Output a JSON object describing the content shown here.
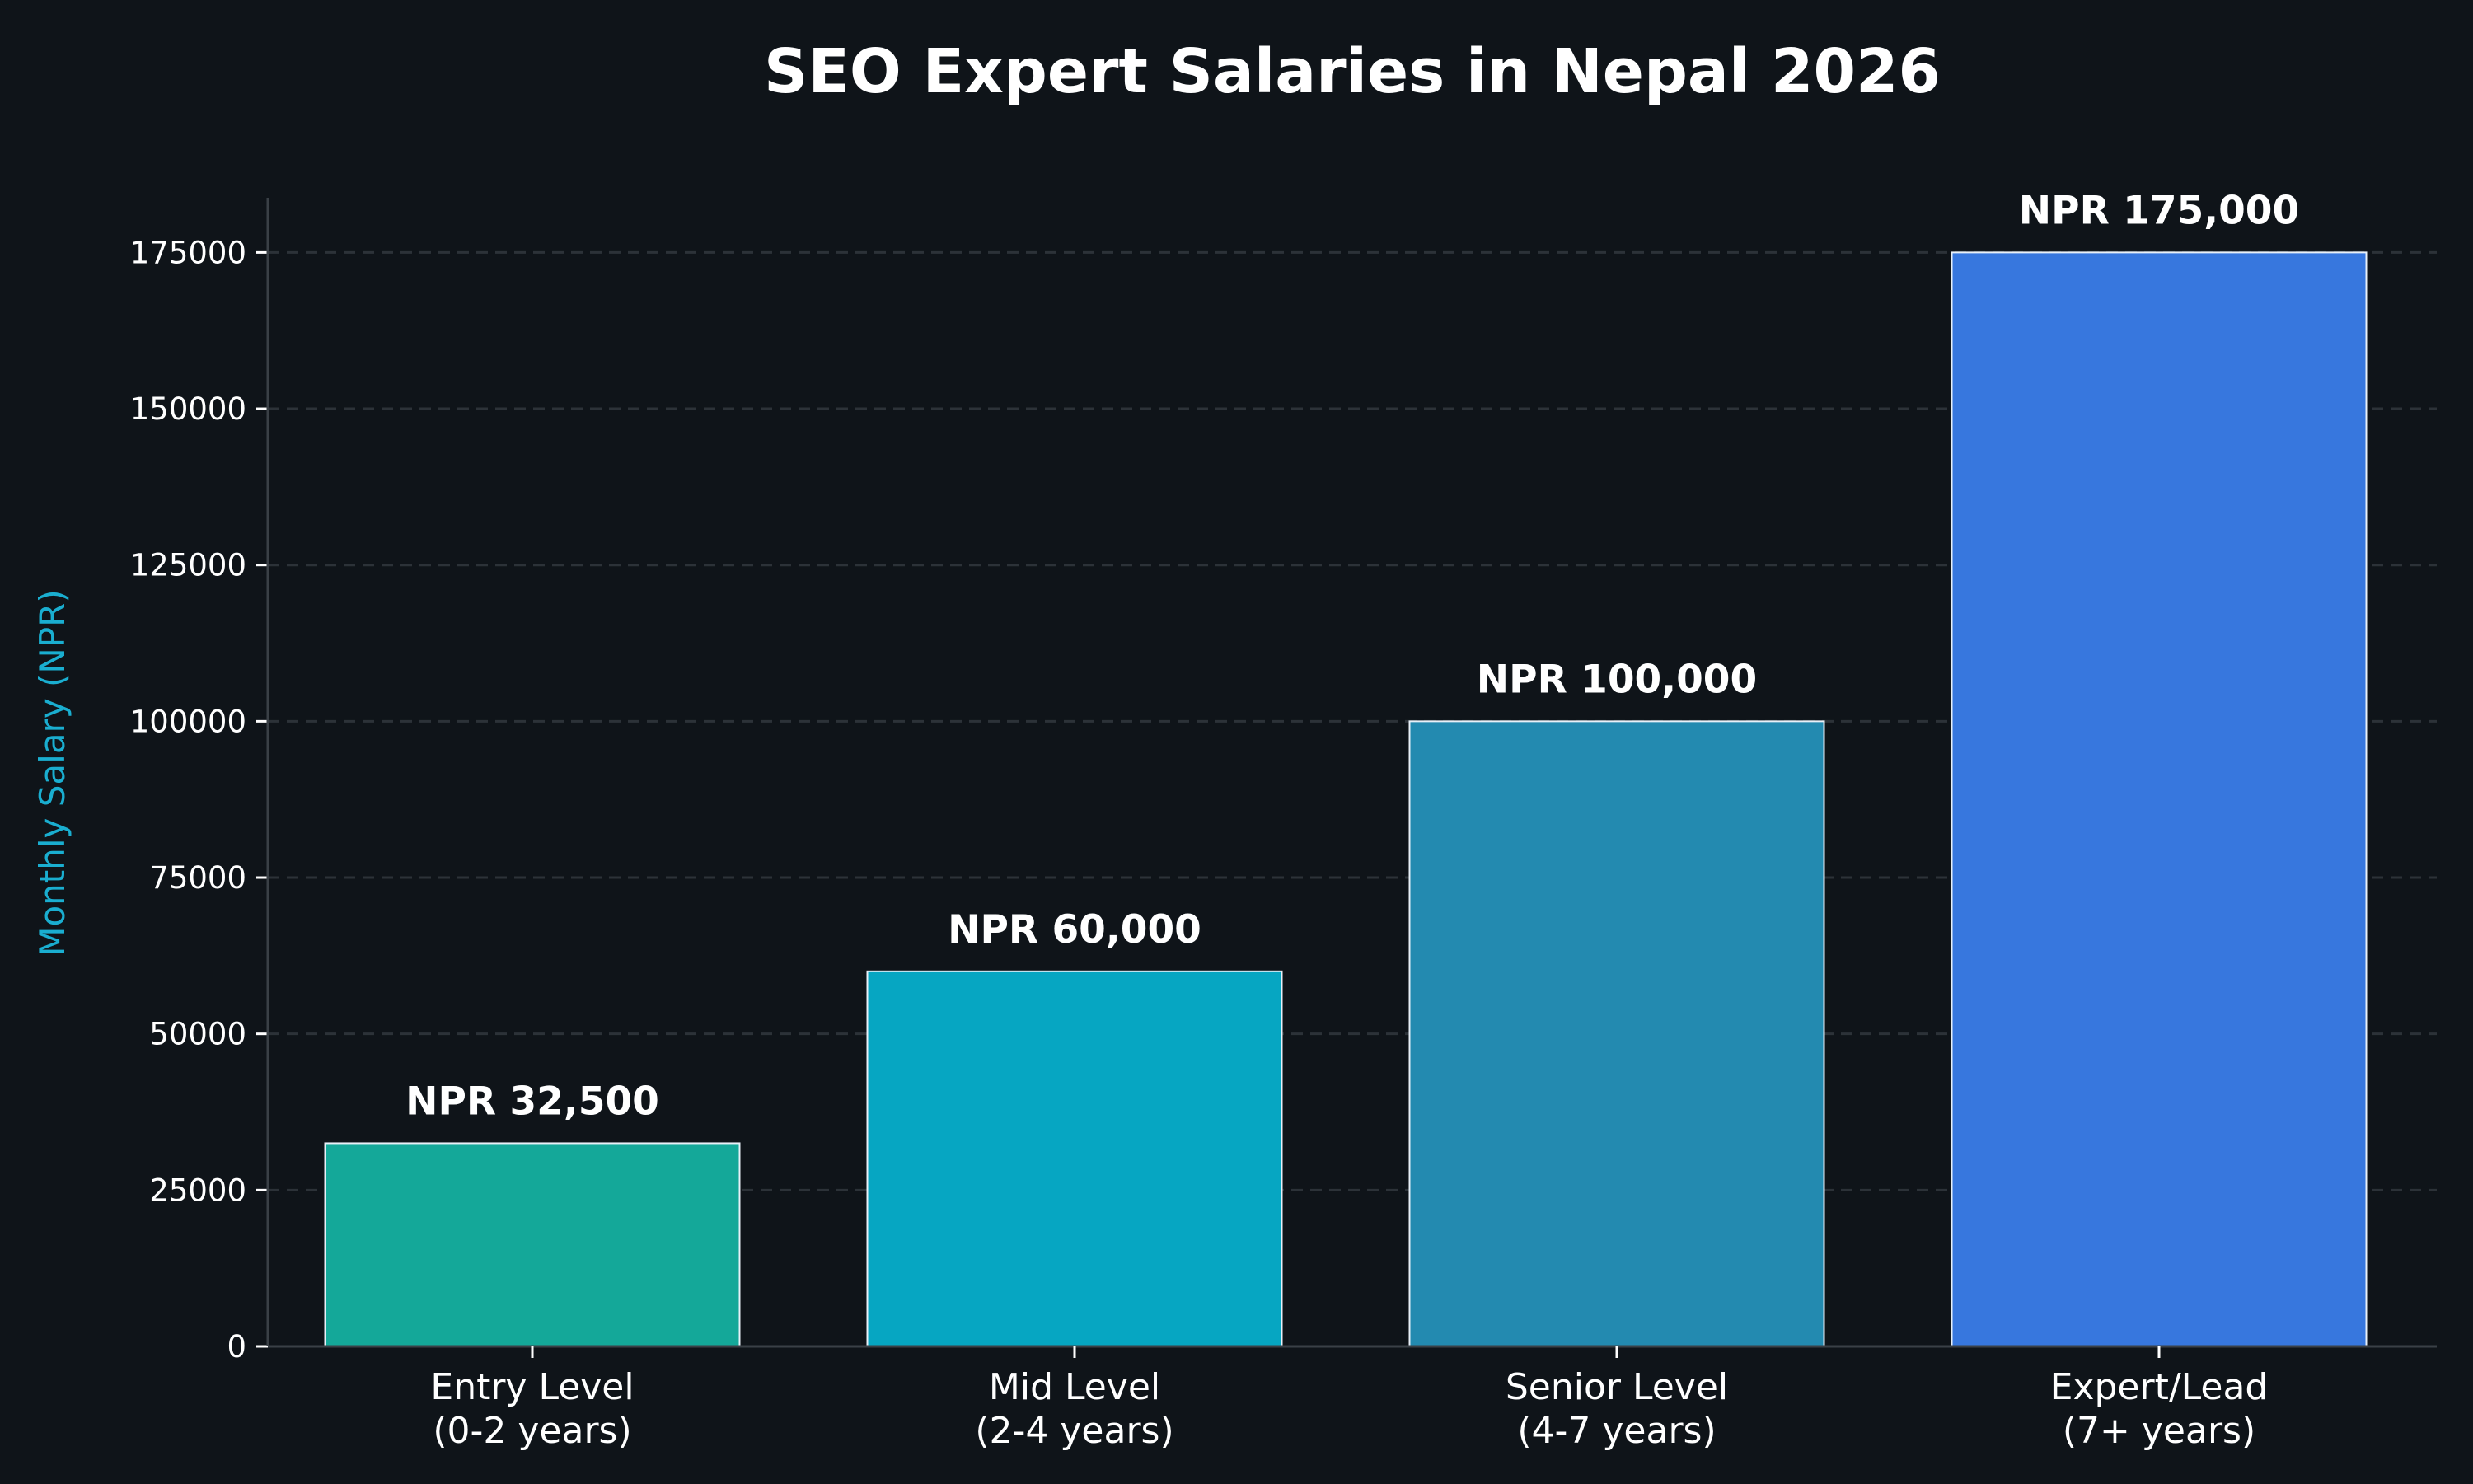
{
  "chart_data": {
    "type": "bar",
    "title": "SEO Expert Salaries in Nepal 2026",
    "xlabel": "",
    "ylabel": "Monthly Salary (NPR)",
    "categories": [
      [
        "Entry Level",
        "(0-2 years)"
      ],
      [
        "Mid Level",
        "(2-4 years)"
      ],
      [
        "Senior Level",
        "(4-7 years)"
      ],
      [
        "Expert/Lead",
        "(7+ years)"
      ]
    ],
    "values": [
      32500,
      60000,
      100000,
      175000
    ],
    "data_labels": [
      "NPR 32,500",
      "NPR 60,000",
      "NPR 100,000",
      "NPR 175,000"
    ],
    "yticks": [
      0,
      25000,
      50000,
      75000,
      100000,
      125000,
      150000,
      175000
    ],
    "ylim": [
      0,
      183750
    ],
    "grid": "horizontal-dashed",
    "colors": {
      "background": "#0f1419",
      "bars": [
        "#14a899",
        "#06a6c2",
        "#238ab0",
        "#3777de"
      ],
      "bar_edge": "#e8f0f8",
      "ylabel": "#1aaed0",
      "grid": "#2c3238",
      "axis": "#3a4046"
    }
  }
}
